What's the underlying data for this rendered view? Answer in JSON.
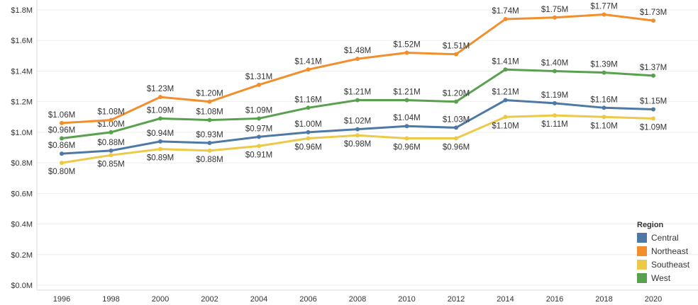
{
  "chart_data": {
    "type": "line",
    "title": "",
    "xlabel": "",
    "ylabel": "",
    "x": [
      1996,
      1998,
      2000,
      2002,
      2004,
      2006,
      2008,
      2010,
      2012,
      2014,
      2016,
      2018,
      2020
    ],
    "ylim": [
      0,
      1.8
    ],
    "y_ticks": [
      "$0.0M",
      "$0.2M",
      "$0.4M",
      "$0.6M",
      "$0.8M",
      "$1.0M",
      "$1.2M",
      "$1.4M",
      "$1.6M",
      "$1.8M"
    ],
    "grid": true,
    "legend": {
      "title": "Region",
      "placement": "bottom-right"
    },
    "series": [
      {
        "name": "Central",
        "color": "#4e79a7",
        "values": [
          0.86,
          0.88,
          0.94,
          0.93,
          0.97,
          1.0,
          1.02,
          1.04,
          1.03,
          1.21,
          1.19,
          1.16,
          1.15
        ],
        "labels": [
          "$0.86M",
          "$0.88M",
          "$0.94M",
          "$0.93M",
          "$0.97M",
          "$1.00M",
          "$1.02M",
          "$1.04M",
          "$1.03M",
          "$1.21M",
          "$1.19M",
          "$1.16M",
          "$1.15M"
        ]
      },
      {
        "name": "Northeast",
        "color": "#f28e2b",
        "values": [
          1.06,
          1.08,
          1.23,
          1.2,
          1.31,
          1.41,
          1.48,
          1.52,
          1.51,
          1.74,
          1.75,
          1.77,
          1.73
        ],
        "labels": [
          "$1.06M",
          "$1.08M",
          "$1.23M",
          "$1.20M",
          "$1.31M",
          "$1.41M",
          "$1.48M",
          "$1.52M",
          "$1.51M",
          "$1.74M",
          "$1.75M",
          "$1.77M",
          "$1.73M"
        ]
      },
      {
        "name": "Southeast",
        "color": "#edc948",
        "values": [
          0.8,
          0.85,
          0.89,
          0.88,
          0.91,
          0.96,
          0.98,
          0.96,
          0.96,
          1.1,
          1.11,
          1.1,
          1.09
        ],
        "labels": [
          "$0.80M",
          "$0.85M",
          "$0.89M",
          "$0.88M",
          "$0.91M",
          "$0.96M",
          "$0.98M",
          "$0.96M",
          "$0.96M",
          "$1.10M",
          "$1.11M",
          "$1.10M",
          "$1.09M"
        ]
      },
      {
        "name": "West",
        "color": "#59a14f",
        "values": [
          0.96,
          1.0,
          1.09,
          1.08,
          1.09,
          1.16,
          1.21,
          1.21,
          1.2,
          1.41,
          1.4,
          1.39,
          1.37
        ],
        "labels": [
          "$0.96M",
          "$1.00M",
          "$1.09M",
          "$1.08M",
          "$1.09M",
          "$1.16M",
          "$1.21M",
          "$1.21M",
          "$1.20M",
          "$1.41M",
          "$1.40M",
          "$1.39M",
          "$1.37M"
        ]
      }
    ]
  }
}
